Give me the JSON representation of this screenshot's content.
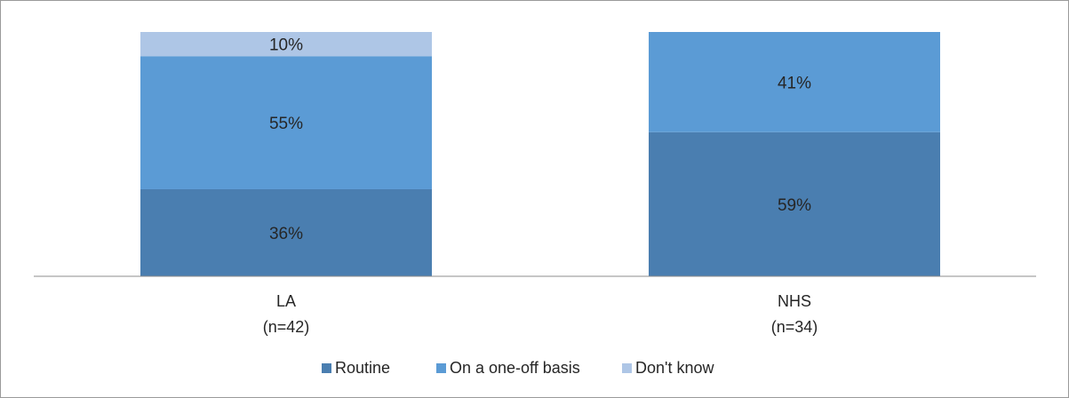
{
  "chart_data": {
    "type": "bar",
    "stacked": true,
    "percent_stacked": true,
    "categories": [
      "LA",
      "NHS"
    ],
    "category_sublabels": [
      "(n=42)",
      "(n=34)"
    ],
    "series": [
      {
        "name": "Routine",
        "values": [
          36,
          59
        ],
        "labels": [
          "36%",
          "59%"
        ],
        "color": "#4a7eb0"
      },
      {
        "name": "On a one-off basis",
        "values": [
          55,
          41
        ],
        "labels": [
          "55%",
          "41%"
        ],
        "color": "#5b9bd5"
      },
      {
        "name": "Don't know",
        "values": [
          10,
          0
        ],
        "labels": [
          "10%",
          ""
        ],
        "color": "#aec6e6"
      }
    ],
    "ylim": [
      0,
      100
    ],
    "grid": false,
    "legend_position": "bottom"
  }
}
